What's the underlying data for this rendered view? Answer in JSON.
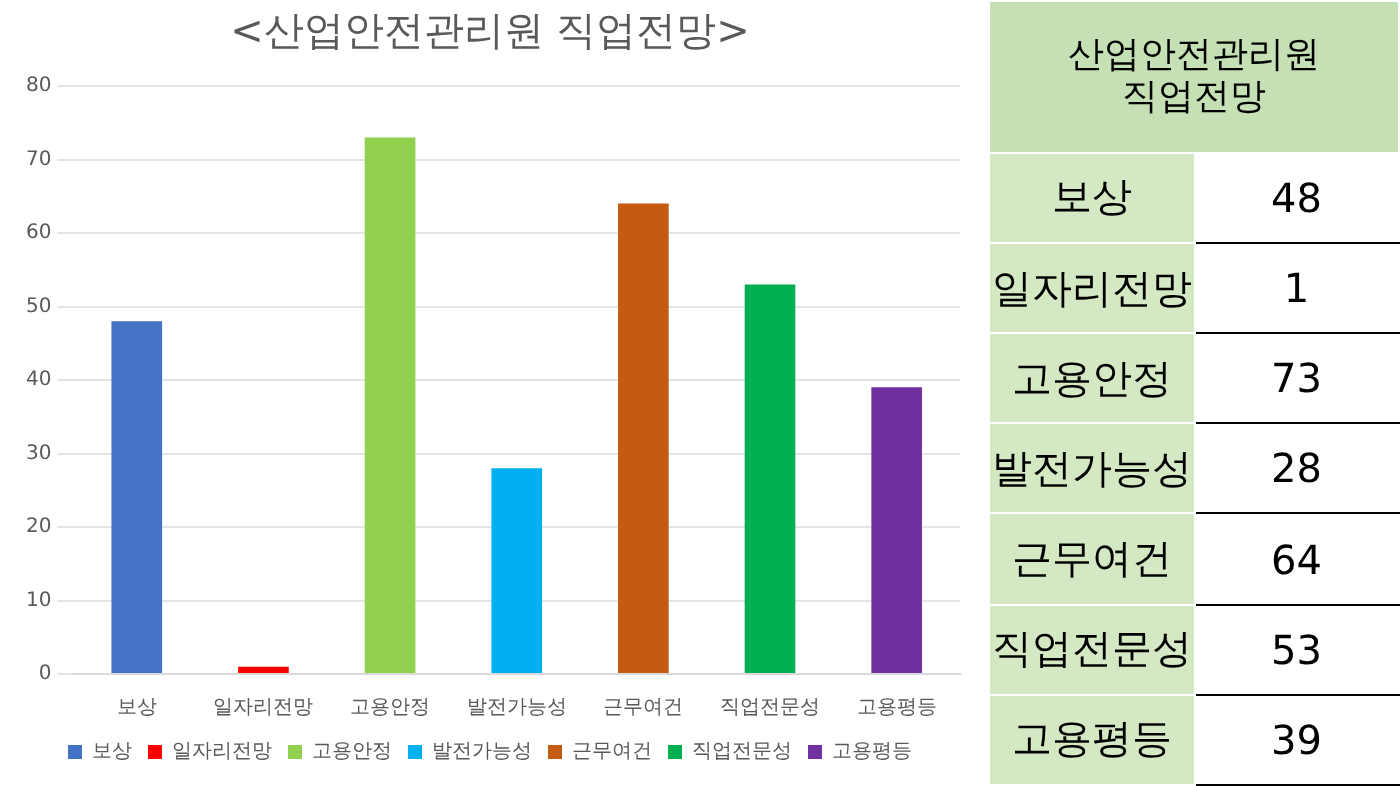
{
  "chart_data": [
    {
      "type": "bar",
      "title": "<산업안전관리원 직업전망>",
      "categories": [
        "보상",
        "일자리전망",
        "고용안정",
        "발전가능성",
        "근무여건",
        "직업전문성",
        "고용평등"
      ],
      "series": [
        {
          "name": "보상",
          "color": "#4472c4",
          "values": [
            48,
            null,
            null,
            null,
            null,
            null,
            null
          ]
        },
        {
          "name": "일자리전망",
          "color": "#ff0000",
          "values": [
            null,
            1,
            null,
            null,
            null,
            null,
            null
          ]
        },
        {
          "name": "고용안정",
          "color": "#92d050",
          "values": [
            null,
            null,
            73,
            null,
            null,
            null,
            null
          ]
        },
        {
          "name": "발전가능성",
          "color": "#00b0f0",
          "values": [
            null,
            null,
            null,
            28,
            null,
            null,
            null
          ]
        },
        {
          "name": "근무여건",
          "color": "#c55a11",
          "values": [
            null,
            null,
            null,
            null,
            64,
            null,
            null
          ]
        },
        {
          "name": "직업전문성",
          "color": "#00b050",
          "values": [
            null,
            null,
            null,
            null,
            null,
            53,
            null
          ]
        },
        {
          "name": "고용평등",
          "color": "#7030a0",
          "values": [
            null,
            null,
            null,
            null,
            null,
            null,
            39
          ]
        }
      ],
      "ylim": [
        0,
        80
      ],
      "yticks": [
        0,
        10,
        20,
        30,
        40,
        50,
        60,
        70,
        80
      ],
      "grid": "y",
      "legend": "bottom"
    },
    {
      "type": "other",
      "title": "산업안전관리원 직업전망",
      "categories": [
        "보상",
        "일자리전망",
        "고용안정",
        "발전가능성",
        "근무여건",
        "직업전문성",
        "고용평등"
      ],
      "values": [
        48,
        1,
        73,
        28,
        64,
        53,
        39
      ],
      "data_labels": true
    }
  ]
}
